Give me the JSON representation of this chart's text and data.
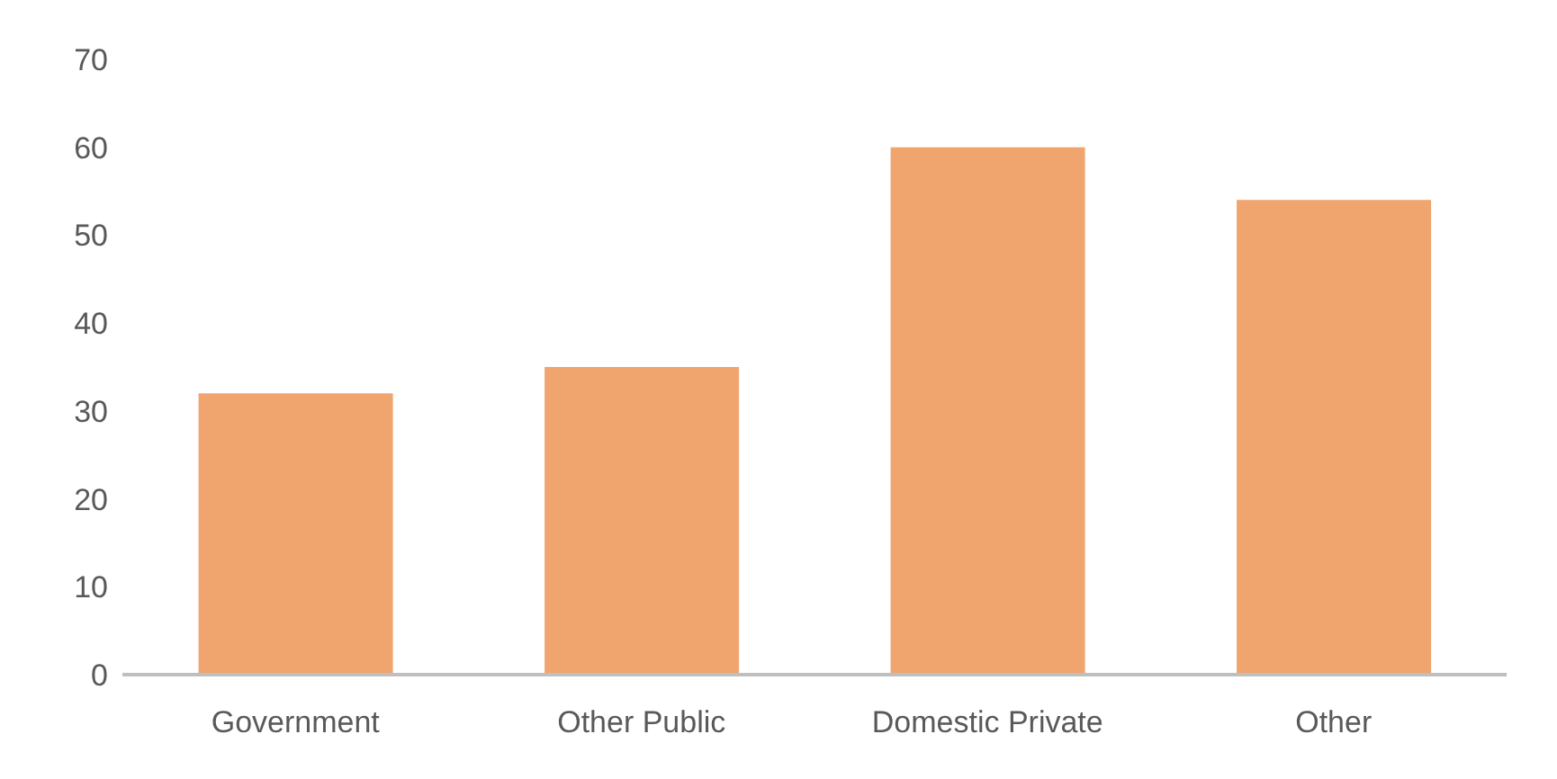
{
  "chart_data": {
    "type": "bar",
    "categories": [
      "Government",
      "Other Public",
      "Domestic Private",
      "Other"
    ],
    "values": [
      32,
      35,
      60,
      54
    ],
    "color": "#f0a46e",
    "ylim": [
      0,
      70
    ],
    "yticks": [
      0,
      10,
      20,
      30,
      40,
      50,
      60,
      70
    ],
    "grid": false
  }
}
